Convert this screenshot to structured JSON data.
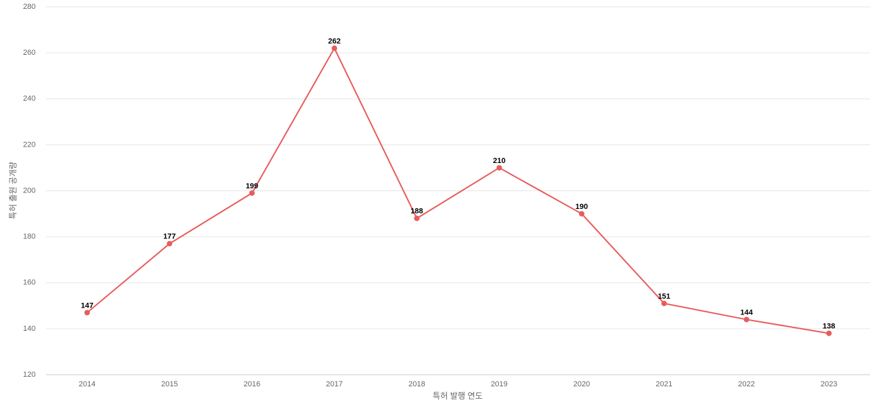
{
  "chart_data": {
    "type": "line",
    "x_label": "특허 발행 연도",
    "y_label": "특허 출원 공개량",
    "categories": [
      "2014",
      "2015",
      "2016",
      "2017",
      "2018",
      "2019",
      "2020",
      "2021",
      "2022",
      "2023"
    ],
    "series": [
      {
        "name": "특허 출원 공개량",
        "color": "#e85c5c",
        "values": [
          147,
          177,
          199,
          262,
          188,
          210,
          190,
          151,
          144,
          138
        ]
      }
    ],
    "ylim": [
      120,
      280
    ],
    "yticks": [
      120,
      140,
      160,
      180,
      200,
      220,
      240,
      260,
      280
    ],
    "grid": true,
    "data_labels": true
  }
}
